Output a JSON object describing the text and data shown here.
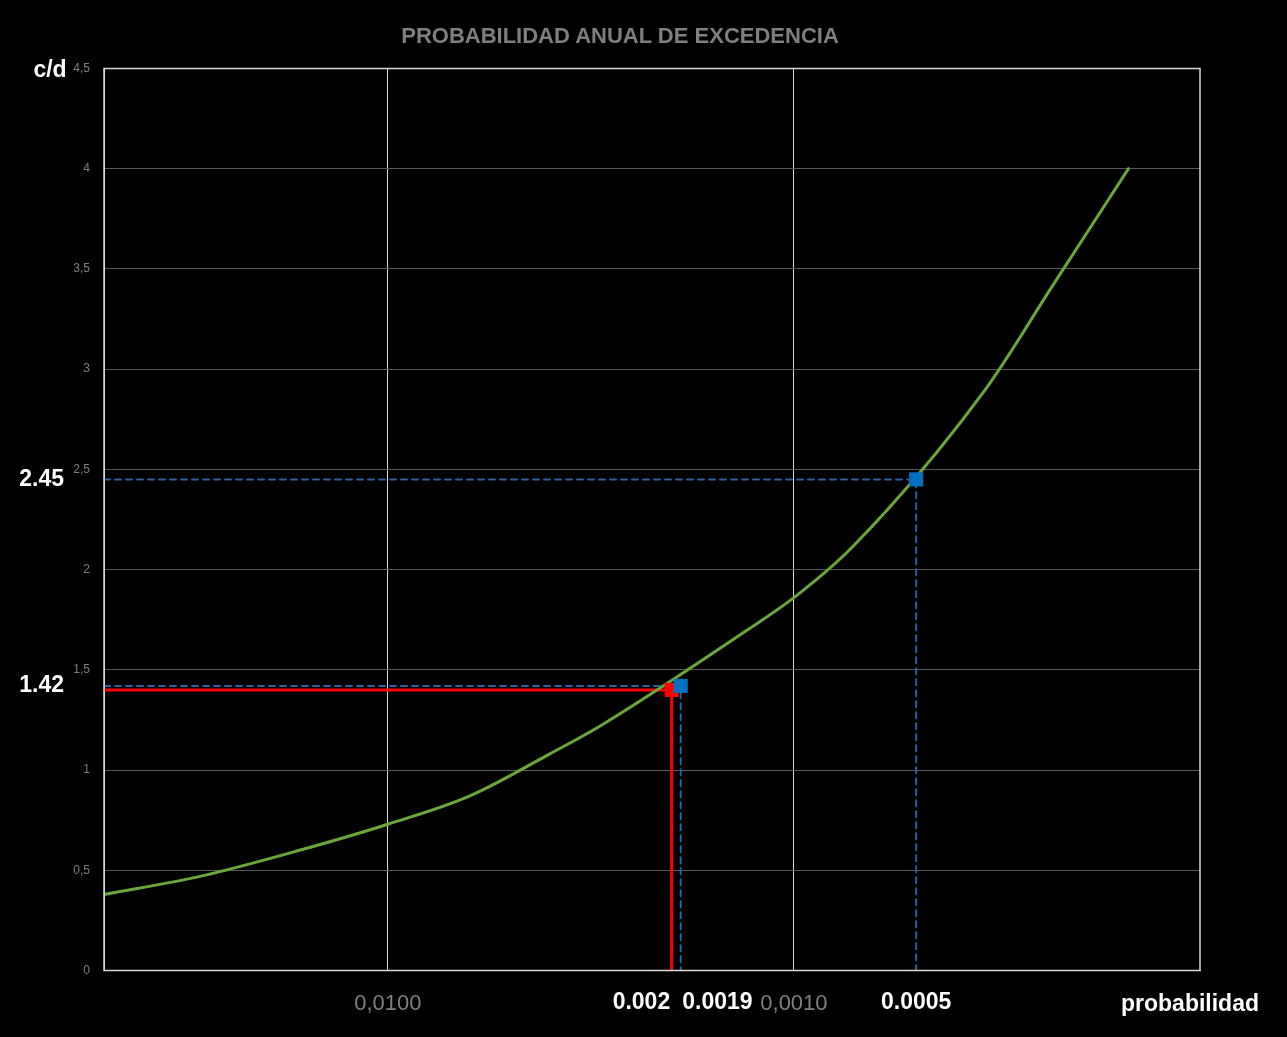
{
  "chart_data": {
    "type": "line",
    "title": "PROBABILIDAD ANUAL DE EXCEDENCIA",
    "xlabel": "probabilidad",
    "ylabel": "c/d",
    "log": "x",
    "grid": true,
    "xlim": [
      0.05,
      0.0001
    ],
    "xticks": [
      {
        "value": 0.01,
        "label": "0,0100"
      },
      {
        "value": 0.001,
        "label": "0,0010"
      }
    ],
    "ylim": [
      0,
      4.5
    ],
    "yticks": [
      0,
      {
        "value": 0.5,
        "label": "0,5"
      },
      1,
      {
        "value": 1.5,
        "label": "1,5"
      },
      2,
      {
        "value": 2.5,
        "label": "2,5"
      },
      3,
      {
        "value": 3.5,
        "label": "3,5"
      },
      4,
      {
        "value": 4.5,
        "label": "4,5"
      }
    ],
    "series": [
      {
        "color": "#6aa63a",
        "marker": "none",
        "line_style": "solid",
        "x": [
          0.05,
          0.029,
          0.0165,
          0.01,
          0.0063,
          0.004,
          0.003,
          0.0013,
          0.001,
          0.00072,
          0.00034,
          0.00023,
          0.00015
        ],
        "values": [
          0.38,
          0.47,
          0.6,
          0.73,
          0.87,
          1.08,
          1.22,
          1.7,
          1.86,
          2.11,
          2.89,
          3.42,
          4.0
        ]
      },
      {
        "type": "line",
        "color": "#2e5f9e",
        "marker": "none",
        "line_style": "dashed",
        "x": [
          0.05,
          0.0005,
          0.0005
        ],
        "values": [
          2.45,
          2.45,
          0
        ]
      },
      {
        "type": "line",
        "color": "#2e5f9e",
        "marker": "none",
        "line_style": "dashed",
        "x": [
          0.05,
          0.0019,
          0.0019
        ],
        "values": [
          1.42,
          1.42,
          0
        ]
      },
      {
        "type": "line",
        "color": "#ff0000",
        "marker": "none",
        "line_style": "solid",
        "x": [
          0.05,
          0.002,
          0.002
        ],
        "values": [
          1.4,
          1.4,
          0
        ]
      },
      {
        "type": "scatter",
        "color": "#0070c0",
        "marker": "square",
        "x": [
          0.0005,
          0.0019
        ],
        "values": [
          2.45,
          1.42
        ]
      },
      {
        "type": "scatter",
        "color": "#ff0000",
        "marker": "square",
        "x": [
          0.002
        ],
        "values": [
          1.4
        ]
      }
    ],
    "annotations": [
      {
        "text": "2.45",
        "x": 0.05,
        "y": 2.45
      },
      {
        "text": "1.42",
        "x": 0.05,
        "y": 1.42
      },
      {
        "text": "0.002",
        "x": 0.002,
        "y": 0
      },
      {
        "text": "0.0019",
        "x": 0.0019,
        "y": 0
      },
      {
        "text": "0.0005",
        "x": 0.0005,
        "y": 0
      }
    ]
  }
}
